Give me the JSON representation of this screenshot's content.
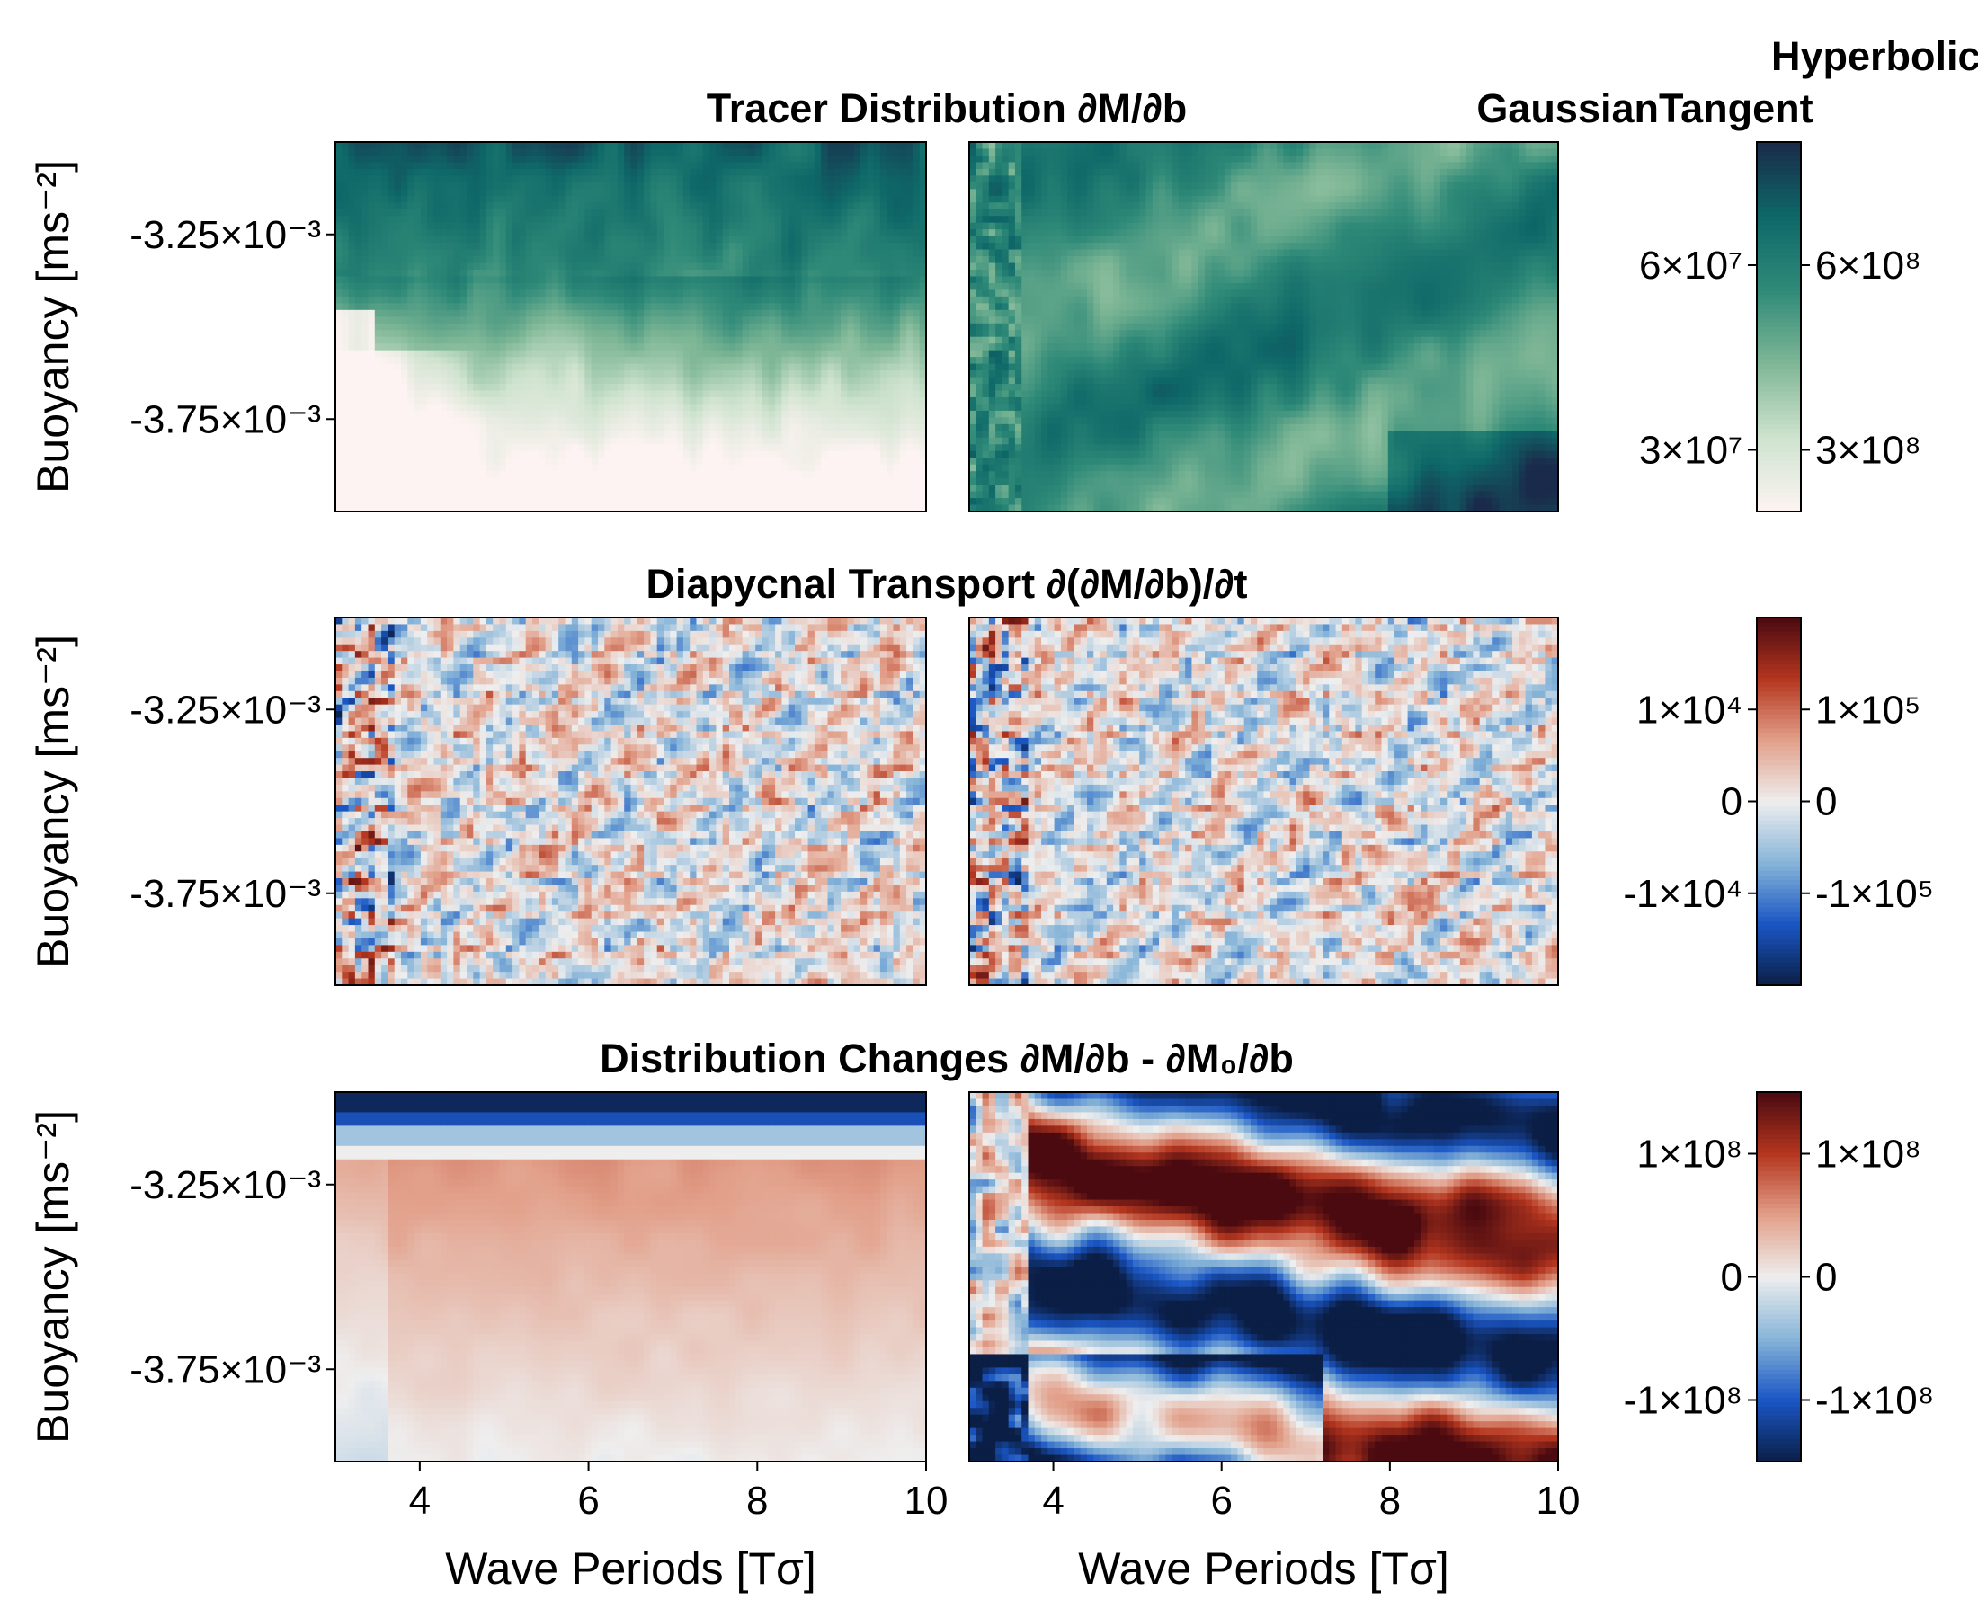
{
  "chart_data": {
    "type": "heatmap",
    "column_titles": [
      "Gaussian",
      "Hyperbolic\nTangent"
    ],
    "panel_titles": [
      "Tracer Distribution ∂M/∂b",
      "Diapycnal Transport ∂(∂M/∂b)/∂t",
      "Distribution Changes ∂M/∂b - ∂M₀/∂b"
    ],
    "xlabel": "Wave Periods [Tσ]",
    "ylabel": "Buoyancy [ms⁻²]",
    "xlim": [
      3,
      10
    ],
    "ylim": [
      -0.004,
      -0.003
    ],
    "x_ticks": [
      4,
      6,
      8,
      10
    ],
    "x_tick_labels": [
      "4",
      "6",
      "8",
      "10"
    ],
    "y_ticks": [
      -0.00325,
      -0.00375
    ],
    "y_tick_labels": [
      "-3.25×10⁻³",
      "-3.75×10⁻³"
    ],
    "rows": [
      {
        "colormap": "sequential white → green → dark navy",
        "colors": [
          "#fdf3f2",
          "#cfe3cf",
          "#7fb796",
          "#2f8a78",
          "#0e6868",
          "#1a2a4a"
        ],
        "colorbar_left": {
          "ticks": [
            30000000,
            60000000
          ],
          "labels": [
            "3×10⁷",
            "6×10⁷"
          ],
          "range": [
            20000000,
            80000000
          ]
        },
        "colorbar_right": {
          "ticks": [
            300000000,
            600000000
          ],
          "labels": [
            "3×10⁸",
            "6×10⁸"
          ],
          "range": [
            200000000,
            800000000
          ]
        }
      },
      {
        "colormap": "diverging blue – white – red",
        "colors": [
          "#0b1e45",
          "#1a56c4",
          "#86b4d8",
          "#eeeeee",
          "#e2a08a",
          "#b5361f",
          "#4a0a10"
        ],
        "colorbar_left": {
          "ticks": [
            -10000,
            0,
            10000
          ],
          "labels": [
            "-1×10⁴",
            "0",
            "1×10⁴"
          ],
          "range": [
            -20000,
            20000
          ]
        },
        "colorbar_right": {
          "ticks": [
            -100000,
            0,
            100000
          ],
          "labels": [
            "-1×10⁵",
            "0",
            "1×10⁵"
          ],
          "range": [
            -200000,
            200000
          ]
        }
      },
      {
        "colormap": "diverging blue – white – red",
        "colors": [
          "#0b1e45",
          "#1a56c4",
          "#86b4d8",
          "#eeeeee",
          "#e2a08a",
          "#b5361f",
          "#4a0a10"
        ],
        "colorbar_left": {
          "ticks": [
            -100000000,
            0,
            100000000
          ],
          "labels": [
            "-1×10⁸",
            "0",
            "1×10⁸"
          ],
          "range": [
            -150000000,
            150000000
          ]
        },
        "colorbar_right": {
          "ticks": [
            -100000000,
            0,
            100000000
          ],
          "labels": [
            "-1×10⁸",
            "0",
            "1×10⁸"
          ],
          "range": [
            -150000000,
            150000000
          ]
        }
      }
    ]
  }
}
